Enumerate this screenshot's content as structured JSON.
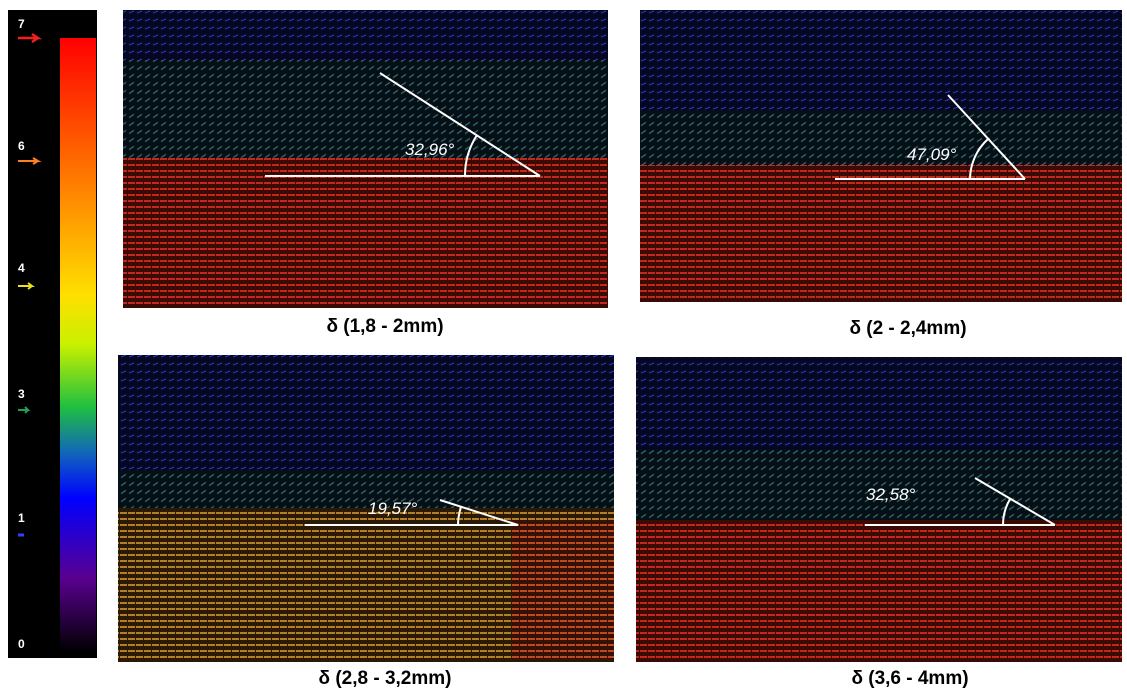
{
  "colorbar": {
    "labels": [
      "7",
      "6",
      "4",
      "3",
      "1",
      "0"
    ]
  },
  "panels": [
    {
      "caption": "δ (1,8 - 2mm)",
      "angle": "32,96°"
    },
    {
      "caption": "δ (2 - 2,4mm)",
      "angle": "47,09°"
    },
    {
      "caption": "δ (2,8 - 3,2mm)",
      "angle": "19,57°"
    },
    {
      "caption": "δ (3,6 - 4mm)",
      "angle": "32,58°"
    }
  ]
}
